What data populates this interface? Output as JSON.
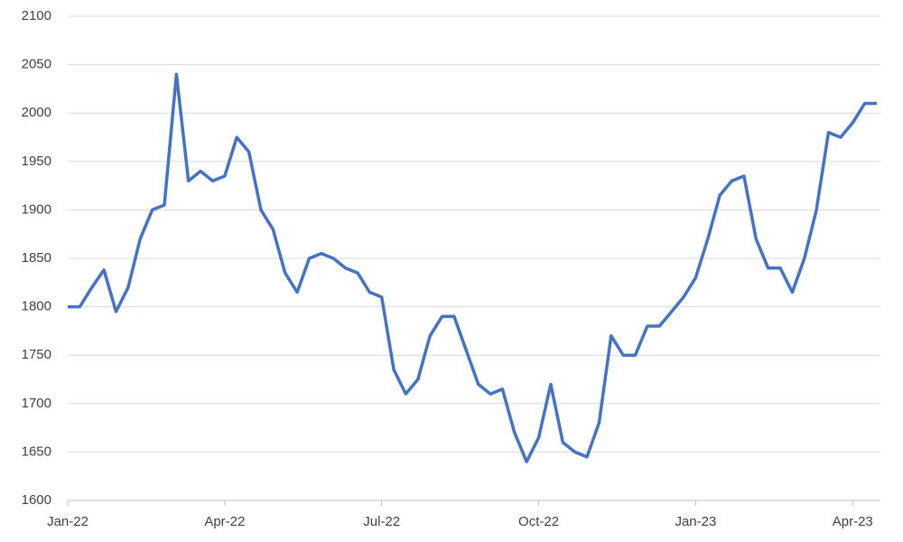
{
  "chart_data": {
    "type": "line",
    "categories": [
      "Jan-22",
      null,
      null,
      null,
      null,
      null,
      null,
      null,
      null,
      null,
      null,
      null,
      null,
      "Apr-22",
      null,
      null,
      null,
      null,
      null,
      null,
      null,
      null,
      null,
      null,
      null,
      null,
      "Jul-22",
      null,
      null,
      null,
      null,
      null,
      null,
      null,
      null,
      null,
      null,
      null,
      null,
      "Oct-22",
      null,
      null,
      null,
      null,
      null,
      null,
      null,
      null,
      null,
      null,
      null,
      null,
      "Jan-23",
      null,
      null,
      null,
      null,
      null,
      null,
      null,
      null,
      null,
      null,
      null,
      null,
      "Apr-23",
      null,
      null
    ],
    "series": [
      {
        "color": "#4472c4",
        "values": [
          1800,
          1800,
          1820,
          1838,
          1795,
          1820,
          1870,
          1900,
          1905,
          2040,
          1930,
          1940,
          1930,
          1935,
          1975,
          1960,
          1900,
          1880,
          1835,
          1815,
          1850,
          1855,
          1850,
          1840,
          1835,
          1815,
          1810,
          1735,
          1710,
          1725,
          1770,
          1790,
          1790,
          1755,
          1720,
          1710,
          1715,
          1670,
          1640,
          1665,
          1720,
          1660,
          1650,
          1645,
          1680,
          1770,
          1750,
          1750,
          1780,
          1780,
          1795,
          1810,
          1830,
          1870,
          1915,
          1930,
          1935,
          1870,
          1840,
          1840,
          1815,
          1850,
          1900,
          1980,
          1975,
          1990,
          2010,
          2010
        ]
      }
    ],
    "ylim": [
      1600,
      2100
    ],
    "yticks": [
      1600,
      1650,
      1700,
      1750,
      1800,
      1850,
      1900,
      1950,
      2000,
      2050,
      2100
    ],
    "grid": true
  }
}
